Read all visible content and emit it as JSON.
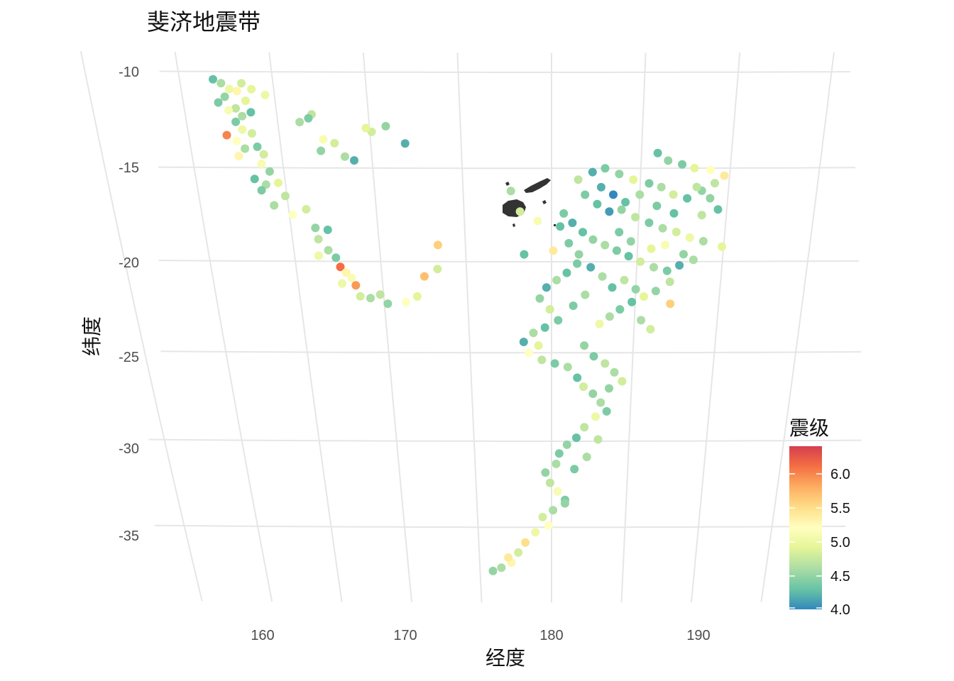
{
  "title": "斐济地震带",
  "x_axis_label": "经度",
  "y_axis_label": "纬度",
  "legend_title": "震级",
  "x_tick_labels": [
    "160",
    "170",
    "180",
    "190"
  ],
  "y_tick_labels": [
    "-10",
    "-15",
    "-20",
    "-25",
    "-30",
    "-35"
  ],
  "legend_tick_labels": [
    "6.0",
    "5.5",
    "5.0",
    "4.5",
    "4.0"
  ],
  "chart_data": {
    "type": "scatter",
    "projection": "orthographic-like curved graticule",
    "x_field": "longitude",
    "y_field": "latitude",
    "color_field": "magnitude",
    "xlim": [
      155,
      195
    ],
    "ylim": [
      -38.5,
      -10
    ],
    "x_ticks": [
      160,
      170,
      180,
      190
    ],
    "y_ticks": [
      -10,
      -15,
      -20,
      -25,
      -30,
      -35
    ],
    "color_scale": {
      "name": "Spectral (reversed)",
      "min": 4.0,
      "max": 6.4,
      "colors": [
        "#3288bd",
        "#66c2a5",
        "#abdda4",
        "#e6f598",
        "#ffffbf",
        "#fee08b",
        "#fdae61",
        "#f46d43",
        "#d53e4f"
      ],
      "ticks": [
        4.0,
        4.5,
        5.0,
        5.5,
        6.0
      ]
    },
    "grid": true,
    "legend_position": "right-bottom",
    "points": [
      [
        161.8,
        -10.4,
        4.3
      ],
      [
        162.2,
        -10.6,
        4.6
      ],
      [
        162.6,
        -10.9,
        5.0
      ],
      [
        162.3,
        -11.3,
        4.5
      ],
      [
        163.3,
        -10.6,
        4.8
      ],
      [
        161.9,
        -11.6,
        4.4
      ],
      [
        162.8,
        -11.9,
        4.7
      ],
      [
        163.1,
        -12.3,
        4.6
      ],
      [
        162.4,
        -12.0,
        5.1
      ],
      [
        163.4,
        -11.5,
        4.9
      ],
      [
        162.7,
        -12.6,
        4.4
      ],
      [
        163.6,
        -12.1,
        4.3
      ],
      [
        163.0,
        -13.0,
        5.0
      ],
      [
        162.1,
        -13.3,
        6.0
      ],
      [
        162.6,
        -13.6,
        5.2
      ],
      [
        163.5,
        -13.2,
        4.8
      ],
      [
        163.0,
        -14.0,
        4.6
      ],
      [
        163.7,
        -13.9,
        4.4
      ],
      [
        162.6,
        -14.4,
        5.3
      ],
      [
        164.0,
        -14.3,
        4.8
      ],
      [
        163.8,
        -14.8,
        5.1
      ],
      [
        164.2,
        -15.2,
        4.5
      ],
      [
        163.3,
        -15.6,
        4.3
      ],
      [
        163.9,
        -15.9,
        4.6
      ],
      [
        164.6,
        -15.8,
        4.9
      ],
      [
        163.6,
        -16.2,
        4.4
      ],
      [
        164.9,
        -16.5,
        4.7
      ],
      [
        164.2,
        -17.0,
        4.6
      ],
      [
        165.2,
        -17.5,
        5.2
      ],
      [
        166.0,
        -17.2,
        4.8
      ],
      [
        166.4,
        -18.2,
        4.5
      ],
      [
        167.1,
        -18.3,
        4.3
      ],
      [
        166.5,
        -18.8,
        4.7
      ],
      [
        167.0,
        -19.4,
        4.6
      ],
      [
        166.4,
        -19.7,
        5.0
      ],
      [
        167.4,
        -19.8,
        4.4
      ],
      [
        167.6,
        -20.3,
        6.1
      ],
      [
        167.9,
        -20.6,
        5.3
      ],
      [
        168.2,
        -20.9,
        5.1
      ],
      [
        168.4,
        -21.3,
        5.9
      ],
      [
        167.6,
        -21.2,
        5.0
      ],
      [
        168.6,
        -21.9,
        4.8
      ],
      [
        169.2,
        -22.0,
        4.6
      ],
      [
        169.8,
        -21.8,
        4.7
      ],
      [
        170.2,
        -22.3,
        4.5
      ],
      [
        171.3,
        -22.2,
        5.2
      ],
      [
        172.0,
        -21.9,
        4.9
      ],
      [
        173.3,
        -20.4,
        4.8
      ],
      [
        173.4,
        -19.1,
        5.6
      ],
      [
        172.5,
        -20.8,
        5.7
      ],
      [
        166.2,
        -12.6,
        4.6
      ],
      [
        166.9,
        -12.2,
        4.7
      ],
      [
        167.4,
        -13.5,
        5.1
      ],
      [
        168.0,
        -13.7,
        4.8
      ],
      [
        167.2,
        -14.1,
        4.5
      ],
      [
        168.5,
        -14.4,
        4.6
      ],
      [
        169.0,
        -14.6,
        4.2
      ],
      [
        170.1,
        -13.1,
        4.8
      ],
      [
        170.9,
        -12.8,
        4.5
      ],
      [
        171.9,
        -13.7,
        4.2
      ],
      [
        169.8,
        -12.9,
        4.9
      ],
      [
        166.7,
        -12.4,
        4.4
      ],
      [
        163.8,
        -10.9,
        4.9
      ],
      [
        164.5,
        -11.2,
        5.0
      ],
      [
        163.0,
        -11.0,
        5.3
      ],
      [
        185.9,
        -14.2,
        4.3
      ],
      [
        186.5,
        -14.6,
        4.5
      ],
      [
        187.3,
        -14.8,
        4.4
      ],
      [
        188.0,
        -15.0,
        4.9
      ],
      [
        188.9,
        -15.1,
        5.2
      ],
      [
        189.7,
        -15.4,
        5.4
      ],
      [
        189.2,
        -15.8,
        4.7
      ],
      [
        188.5,
        -16.2,
        4.5
      ],
      [
        187.7,
        -16.6,
        4.3
      ],
      [
        186.9,
        -16.4,
        4.8
      ],
      [
        186.2,
        -16.0,
        4.6
      ],
      [
        185.5,
        -15.8,
        4.4
      ],
      [
        184.6,
        -15.6,
        4.9
      ],
      [
        183.8,
        -15.3,
        4.5
      ],
      [
        183.0,
        -15.0,
        4.4
      ],
      [
        182.3,
        -15.2,
        4.2
      ],
      [
        181.5,
        -15.6,
        4.7
      ],
      [
        181.9,
        -16.4,
        4.4
      ],
      [
        182.6,
        -16.9,
        4.3
      ],
      [
        183.3,
        -17.3,
        4.1
      ],
      [
        184.0,
        -17.2,
        4.5
      ],
      [
        184.8,
        -17.6,
        4.7
      ],
      [
        185.6,
        -17.9,
        4.4
      ],
      [
        186.4,
        -18.2,
        4.6
      ],
      [
        187.2,
        -18.4,
        4.8
      ],
      [
        188.0,
        -18.7,
        5.0
      ],
      [
        188.8,
        -18.9,
        4.6
      ],
      [
        189.5,
        -17.2,
        4.3
      ],
      [
        188.6,
        -17.5,
        4.7
      ],
      [
        189.9,
        -19.2,
        4.9
      ],
      [
        180.7,
        -17.4,
        4.4
      ],
      [
        181.2,
        -17.9,
        4.2
      ],
      [
        181.8,
        -18.4,
        4.3
      ],
      [
        182.4,
        -18.8,
        4.5
      ],
      [
        183.1,
        -19.1,
        4.6
      ],
      [
        183.8,
        -19.4,
        4.4
      ],
      [
        184.5,
        -19.7,
        4.3
      ],
      [
        185.2,
        -20.0,
        4.8
      ],
      [
        186.0,
        -20.3,
        4.6
      ],
      [
        186.8,
        -20.5,
        4.4
      ],
      [
        187.5,
        -20.2,
        4.2
      ],
      [
        187.0,
        -21.1,
        4.7
      ],
      [
        186.2,
        -21.6,
        4.5
      ],
      [
        185.5,
        -21.9,
        4.9
      ],
      [
        184.8,
        -22.2,
        4.3
      ],
      [
        184.1,
        -22.6,
        4.4
      ],
      [
        183.5,
        -23.0,
        4.6
      ],
      [
        182.9,
        -23.4,
        5.0
      ],
      [
        185.4,
        -23.2,
        4.6
      ],
      [
        186.0,
        -23.7,
        4.8
      ],
      [
        181.5,
        -20.1,
        4.4
      ],
      [
        180.9,
        -20.6,
        4.3
      ],
      [
        180.3,
        -21.0,
        4.6
      ],
      [
        179.7,
        -21.4,
        4.2
      ],
      [
        179.3,
        -22.0,
        4.5
      ],
      [
        179.9,
        -22.6,
        4.8
      ],
      [
        180.4,
        -23.2,
        4.4
      ],
      [
        179.6,
        -23.6,
        4.3
      ],
      [
        178.9,
        -23.9,
        4.6
      ],
      [
        179.2,
        -24.6,
        4.9
      ],
      [
        178.3,
        -24.4,
        4.2
      ],
      [
        178.6,
        -25.0,
        5.2
      ],
      [
        179.4,
        -25.4,
        4.7
      ],
      [
        180.2,
        -25.6,
        4.4
      ],
      [
        181.0,
        -25.8,
        4.6
      ],
      [
        181.6,
        -26.4,
        4.3
      ],
      [
        182.0,
        -26.9,
        4.8
      ],
      [
        182.6,
        -27.3,
        4.5
      ],
      [
        183.1,
        -27.8,
        4.6
      ],
      [
        183.5,
        -28.3,
        4.4
      ],
      [
        182.8,
        -28.6,
        5.0
      ],
      [
        182.1,
        -29.2,
        4.7
      ],
      [
        181.6,
        -29.8,
        4.3
      ],
      [
        181.0,
        -30.2,
        4.5
      ],
      [
        180.5,
        -30.7,
        4.4
      ],
      [
        180.3,
        -31.3,
        4.6
      ],
      [
        179.6,
        -31.8,
        4.5
      ],
      [
        179.9,
        -32.4,
        4.7
      ],
      [
        180.4,
        -32.9,
        5.1
      ],
      [
        180.9,
        -33.4,
        4.4
      ],
      [
        180.1,
        -34.0,
        4.6
      ],
      [
        179.4,
        -34.4,
        4.8
      ],
      [
        179.8,
        -34.9,
        5.2
      ],
      [
        178.9,
        -35.3,
        5.0
      ],
      [
        178.2,
        -35.9,
        5.5
      ],
      [
        177.7,
        -36.5,
        4.8
      ],
      [
        177.2,
        -37.1,
        5.3
      ],
      [
        176.5,
        -37.4,
        4.6
      ],
      [
        175.9,
        -37.6,
        4.5
      ],
      [
        177.0,
        -36.8,
        5.4
      ],
      [
        180.5,
        -18.1,
        4.3
      ],
      [
        181.0,
        -19.0,
        4.4
      ],
      [
        181.6,
        -19.6,
        4.5
      ],
      [
        182.3,
        -20.3,
        4.2
      ],
      [
        183.0,
        -20.8,
        4.6
      ],
      [
        183.6,
        -21.4,
        4.3
      ],
      [
        184.3,
        -21.0,
        4.7
      ],
      [
        185.0,
        -21.5,
        4.5
      ],
      [
        182.0,
        -21.8,
        4.6
      ],
      [
        181.3,
        -22.4,
        4.4
      ],
      [
        182.8,
        -16.0,
        4.2
      ],
      [
        183.5,
        -16.4,
        4.0
      ],
      [
        184.2,
        -16.8,
        4.3
      ],
      [
        185.0,
        -16.4,
        4.6
      ],
      [
        186.0,
        -17.0,
        4.4
      ],
      [
        187.0,
        -17.4,
        4.3
      ],
      [
        188.2,
        -16.0,
        4.7
      ],
      [
        189.0,
        -16.6,
        4.5
      ],
      [
        183.9,
        -18.4,
        4.4
      ],
      [
        184.6,
        -18.9,
        4.5
      ],
      [
        179.2,
        -17.8,
        5.1
      ],
      [
        178.2,
        -17.3,
        4.8
      ],
      [
        177.7,
        -16.2,
        4.6
      ],
      [
        180.1,
        -19.4,
        5.4
      ],
      [
        178.4,
        -19.6,
        4.3
      ],
      [
        185.8,
        -19.3,
        4.9
      ],
      [
        186.6,
        -19.1,
        5.1
      ],
      [
        187.7,
        -19.6,
        4.5
      ],
      [
        188.3,
        -19.9,
        4.6
      ],
      [
        187.1,
        -22.3,
        5.6
      ],
      [
        182.0,
        -24.6,
        4.5
      ],
      [
        182.6,
        -25.2,
        4.4
      ],
      [
        183.3,
        -25.6,
        4.7
      ],
      [
        183.9,
        -26.1,
        4.6
      ],
      [
        184.4,
        -26.6,
        4.8
      ],
      [
        183.6,
        -27.0,
        4.5
      ],
      [
        183.0,
        -29.9,
        4.7
      ],
      [
        182.3,
        -30.9,
        4.6
      ],
      [
        181.5,
        -31.6,
        4.4
      ],
      [
        180.9,
        -33.6,
        4.5
      ]
    ]
  }
}
